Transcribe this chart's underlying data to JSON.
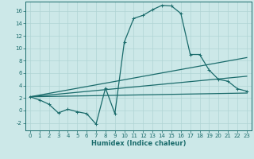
{
  "xlabel": "Humidex (Indice chaleur)",
  "bg_color": "#cce8e8",
  "grid_color": "#b0d4d4",
  "line_color": "#1a6b6b",
  "xlim": [
    -0.5,
    23.5
  ],
  "ylim": [
    -3.2,
    17.5
  ],
  "xticks": [
    0,
    1,
    2,
    3,
    4,
    5,
    6,
    7,
    8,
    9,
    10,
    11,
    12,
    13,
    14,
    15,
    16,
    17,
    18,
    19,
    20,
    21,
    22,
    23
  ],
  "yticks": [
    -2,
    0,
    2,
    4,
    6,
    8,
    10,
    12,
    14,
    16
  ],
  "line1_x": [
    0,
    1,
    2,
    3,
    4,
    5,
    6,
    7,
    8,
    9,
    10,
    11,
    12,
    13,
    14,
    15,
    16,
    17,
    18,
    19,
    20,
    21,
    22,
    23
  ],
  "line1_y": [
    2.2,
    1.7,
    1.0,
    -0.4,
    0.2,
    -0.2,
    -0.5,
    -2.2,
    3.6,
    -0.5,
    11.0,
    14.8,
    15.3,
    16.2,
    16.9,
    16.8,
    15.6,
    9.0,
    9.0,
    6.5,
    5.0,
    4.7,
    3.5,
    3.1
  ],
  "line2_x": [
    0,
    23
  ],
  "line2_y": [
    2.2,
    8.5
  ],
  "line3_x": [
    0,
    23
  ],
  "line3_y": [
    2.2,
    5.5
  ],
  "line4_x": [
    0,
    23
  ],
  "line4_y": [
    2.2,
    2.8
  ]
}
